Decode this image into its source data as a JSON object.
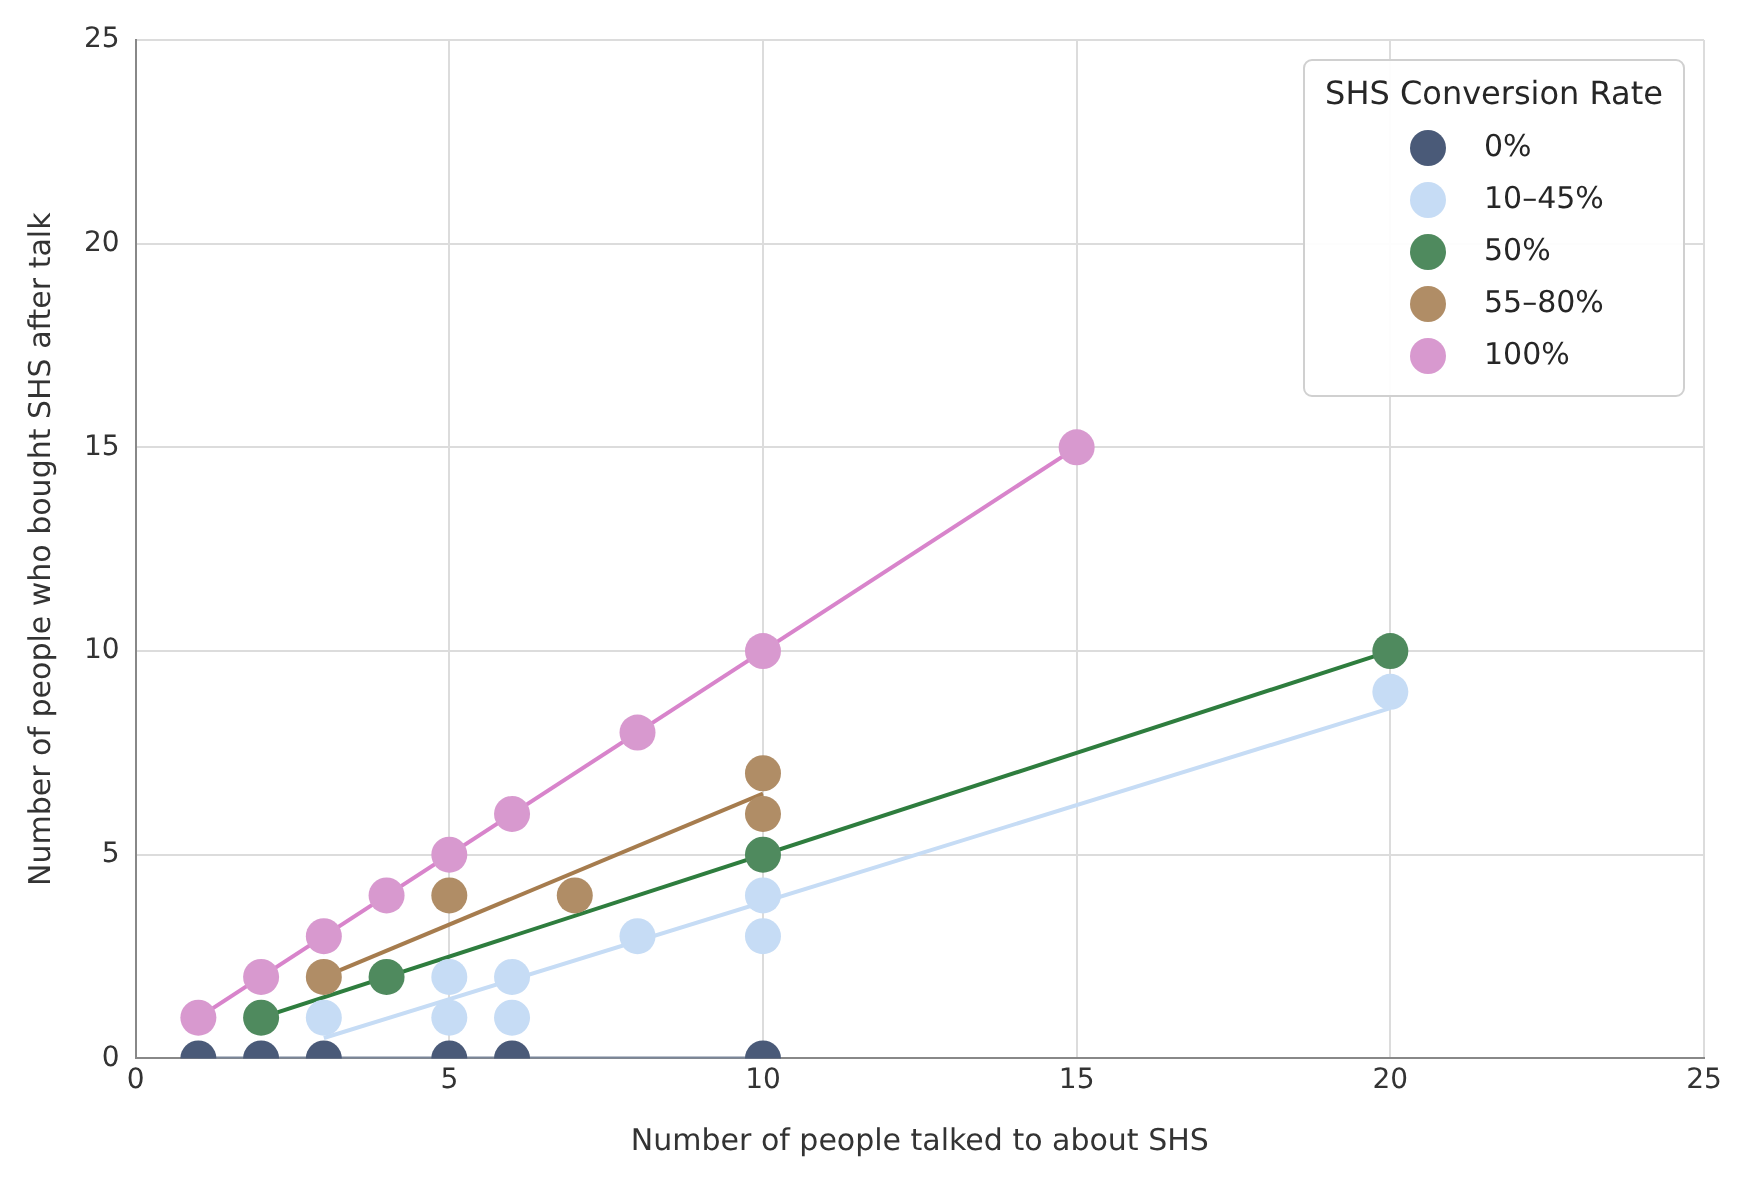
{
  "chart_data": {
    "type": "scatter",
    "xlabel": "Number of people talked to about SHS",
    "ylabel": "Number of people who bought SHS after talk",
    "legend_title": "SHS Conversion Rate",
    "legend": "top right",
    "grid": true,
    "marker": "circle",
    "xlim": [
      0,
      25
    ],
    "ylim": [
      0,
      25
    ],
    "xticks": [
      0,
      5,
      10,
      15,
      20,
      25
    ],
    "yticks": [
      0,
      5,
      10,
      15,
      20,
      25
    ],
    "series": [
      {
        "type": "line",
        "marker": "none",
        "color": "#7a8699",
        "x": [
          1,
          10
        ],
        "values": [
          0,
          0
        ]
      },
      {
        "type": "line",
        "marker": "none",
        "color": "#c6dcf5",
        "x": [
          3,
          20
        ],
        "values": [
          0.5,
          8.6
        ]
      },
      {
        "type": "line",
        "marker": "none",
        "color": "#2e7d3e",
        "x": [
          2,
          20
        ],
        "values": [
          1,
          10
        ]
      },
      {
        "type": "line",
        "marker": "none",
        "color": "#a67c4e",
        "x": [
          3,
          10
        ],
        "values": [
          2,
          6.5
        ]
      },
      {
        "type": "line",
        "marker": "none",
        "color": "#d884cb",
        "x": [
          1,
          15
        ],
        "values": [
          1,
          15
        ]
      },
      {
        "name": "0%",
        "color": "#4a5a78",
        "x": [
          1,
          2,
          3,
          5,
          6,
          10
        ],
        "values": [
          0,
          0,
          0,
          0,
          0,
          0
        ]
      },
      {
        "name": "10–45%",
        "color": "#c6dcf5",
        "x": [
          3,
          5,
          5,
          6,
          6,
          8,
          10,
          10,
          20
        ],
        "values": [
          1,
          2,
          1,
          2,
          1,
          3,
          4,
          3,
          9
        ]
      },
      {
        "name": "50%",
        "color": "#4f8a5e",
        "x": [
          2,
          4,
          10,
          20
        ],
        "values": [
          1,
          2,
          5,
          10
        ]
      },
      {
        "name": "55–80%",
        "color": "#b08d66",
        "x": [
          3,
          5,
          7,
          10,
          10
        ],
        "values": [
          2,
          4,
          4,
          7,
          6
        ]
      },
      {
        "name": "100%",
        "color": "#d899cf",
        "x": [
          1,
          2,
          3,
          4,
          5,
          6,
          8,
          10,
          15
        ],
        "values": [
          1,
          2,
          3,
          4,
          5,
          6,
          8,
          10,
          15
        ]
      }
    ]
  }
}
